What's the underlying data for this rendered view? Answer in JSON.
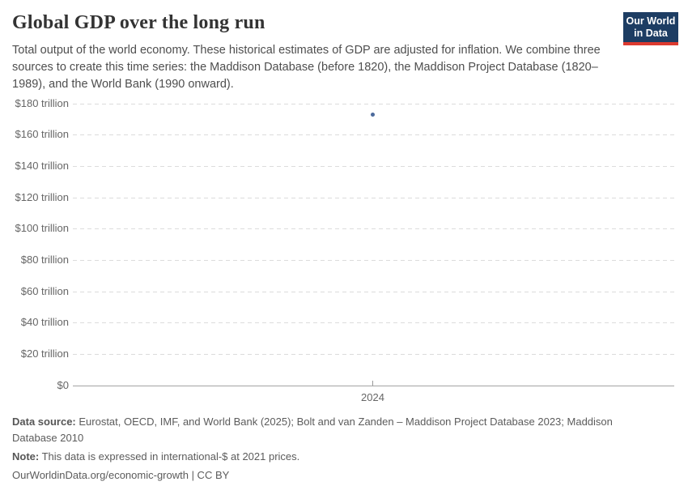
{
  "header": {
    "title": "Global GDP over the long run",
    "subtitle": "Total output of the world economy. These historical estimates of GDP are adjusted for inflation. We combine three sources to create this time series: the Maddison Database (before 1820), the Maddison Project Database (1820–1989), and the World Bank (1990 onward).",
    "logo": {
      "line1": "Our World",
      "line2": "in Data",
      "bg_color": "#1d3d63",
      "stripe_color": "#dc3a2f"
    }
  },
  "chart_data": {
    "type": "scatter",
    "title": "Global GDP over the long run",
    "x": [
      2024
    ],
    "values": [
      172.8
    ],
    "unit": "trillion international-$ at 2021 prices",
    "xlabel": "",
    "ylabel": "",
    "ylim": [
      0,
      180
    ],
    "grid": "horizontal-dashed",
    "legend": "none",
    "point_color": "#4c6a9c",
    "x_ticks": [
      {
        "label": "2024",
        "x": 2024
      }
    ],
    "y_ticks": [
      {
        "label": "$180 trillion",
        "value": 180
      },
      {
        "label": "$160 trillion",
        "value": 160
      },
      {
        "label": "$140 trillion",
        "value": 140
      },
      {
        "label": "$120 trillion",
        "value": 120
      },
      {
        "label": "$100 trillion",
        "value": 100
      },
      {
        "label": "$80 trillion",
        "value": 80
      },
      {
        "label": "$60 trillion",
        "value": 60
      },
      {
        "label": "$40 trillion",
        "value": 40
      },
      {
        "label": "$20 trillion",
        "value": 20
      },
      {
        "label": "$0",
        "value": 0
      }
    ]
  },
  "footer": {
    "data_source_label": "Data source:",
    "data_source_text": " Eurostat, OECD, IMF, and World Bank (2025); Bolt and van Zanden – Maddison Project Database 2023; Maddison Database 2010",
    "note_label": "Note:",
    "note_text": " This data is expressed in international-$ at 2021 prices.",
    "link": "OurWorldinData.org/economic-growth | CC BY"
  }
}
